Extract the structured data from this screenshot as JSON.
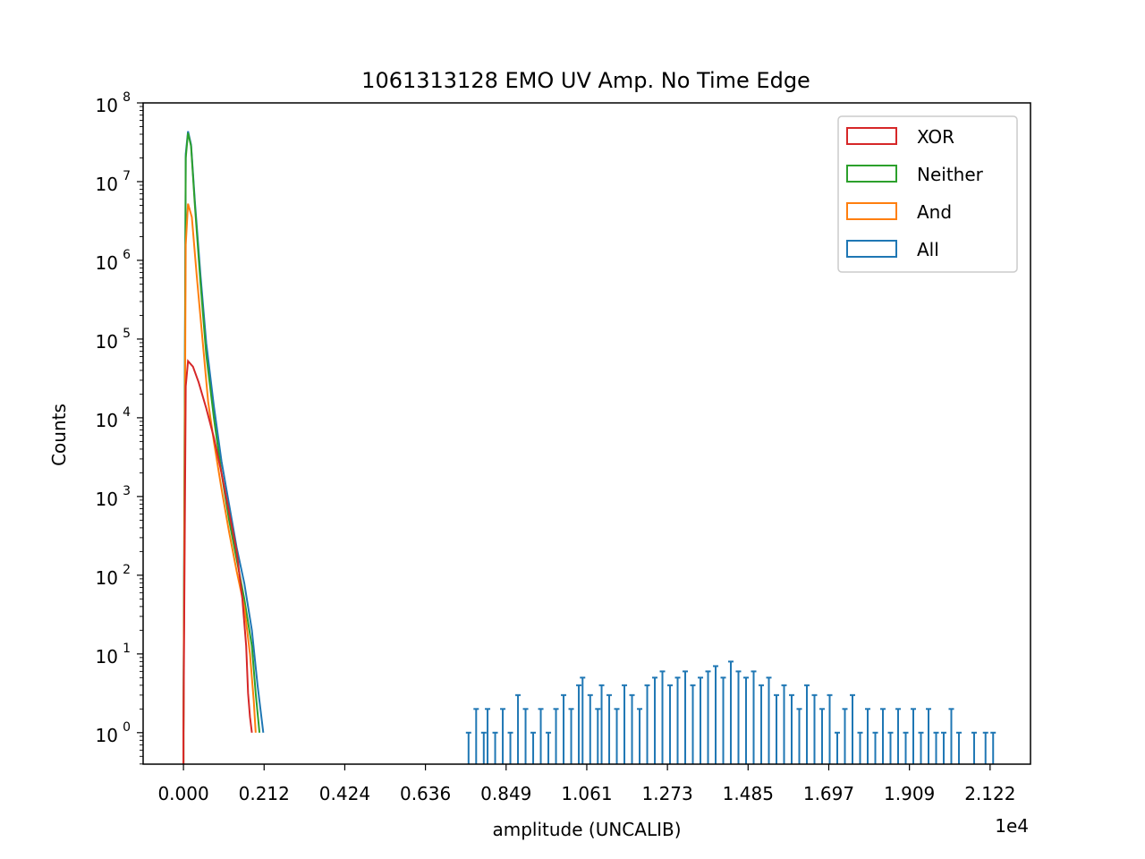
{
  "chart_data": {
    "type": "histogram",
    "title": "1061313128 EMO UV Amp. No Time Edge",
    "xlabel": "amplitude (UNCALIB)",
    "ylabel": "Counts",
    "x_offset_label": "1e4",
    "x_scale_factor": 10000,
    "xlim": [
      -0.1061,
      2.2283
    ],
    "ylim_log10": [
      -0.4,
      8.0
    ],
    "yscale": "log",
    "x_tick_values": [
      0.0,
      0.2122,
      0.4244,
      0.6366,
      0.8488,
      1.061,
      1.2732,
      1.4854,
      1.6976,
      1.9098,
      2.122
    ],
    "x_tick_labels": [
      "0.000",
      "0.212",
      "0.424",
      "0.636",
      "0.849",
      "1.061",
      "1.273",
      "1.485",
      "1.697",
      "1.909",
      "2.122"
    ],
    "y_ticks": [
      {
        "exp": 0,
        "base": "10",
        "power": "0"
      },
      {
        "exp": 1,
        "base": "10",
        "power": "1"
      },
      {
        "exp": 2,
        "base": "10",
        "power": "2"
      },
      {
        "exp": 3,
        "base": "10",
        "power": "3"
      },
      {
        "exp": 4,
        "base": "10",
        "power": "4"
      },
      {
        "exp": 5,
        "base": "10",
        "power": "5"
      },
      {
        "exp": 6,
        "base": "10",
        "power": "6"
      },
      {
        "exp": 7,
        "base": "10",
        "power": "7"
      },
      {
        "exp": 8,
        "base": "10",
        "power": "8"
      }
    ],
    "legend_position": "top-right",
    "grid": false,
    "series": [
      {
        "name": "XOR",
        "color": "#d62728",
        "points": [
          [
            0.0,
            0
          ],
          [
            0.006,
            4.4
          ],
          [
            0.012,
            4.72
          ],
          [
            0.025,
            4.65
          ],
          [
            0.04,
            4.45
          ],
          [
            0.06,
            4.12
          ],
          [
            0.08,
            3.75
          ],
          [
            0.1,
            3.3
          ],
          [
            0.12,
            2.8
          ],
          [
            0.14,
            2.3
          ],
          [
            0.155,
            1.7
          ],
          [
            0.165,
            1.1
          ],
          [
            0.17,
            0.5
          ],
          [
            0.175,
            0.2
          ],
          [
            0.18,
            0
          ]
        ]
      },
      {
        "name": "Neither",
        "color": "#2ca02c",
        "points": [
          [
            0.0,
            0
          ],
          [
            0.006,
            7.3
          ],
          [
            0.012,
            7.62
          ],
          [
            0.02,
            7.45
          ],
          [
            0.03,
            6.7
          ],
          [
            0.045,
            5.7
          ],
          [
            0.06,
            4.8
          ],
          [
            0.08,
            4.0
          ],
          [
            0.1,
            3.3
          ],
          [
            0.12,
            2.7
          ],
          [
            0.14,
            2.2
          ],
          [
            0.16,
            1.7
          ],
          [
            0.18,
            1.1
          ],
          [
            0.19,
            0.5
          ],
          [
            0.2,
            0
          ]
        ]
      },
      {
        "name": "And",
        "color": "#ff7f0e",
        "points": [
          [
            0.0,
            0
          ],
          [
            0.006,
            6.2
          ],
          [
            0.012,
            6.72
          ],
          [
            0.022,
            6.55
          ],
          [
            0.035,
            5.8
          ],
          [
            0.05,
            5.0
          ],
          [
            0.065,
            4.2
          ],
          [
            0.08,
            3.7
          ],
          [
            0.1,
            3.1
          ],
          [
            0.12,
            2.55
          ],
          [
            0.14,
            2.05
          ],
          [
            0.16,
            1.6
          ],
          [
            0.175,
            1.0
          ],
          [
            0.185,
            0.4
          ],
          [
            0.19,
            0
          ]
        ]
      },
      {
        "name": "All",
        "color": "#1f77b4",
        "points": [
          [
            0.0,
            0
          ],
          [
            0.006,
            7.35
          ],
          [
            0.012,
            7.64
          ],
          [
            0.02,
            7.47
          ],
          [
            0.03,
            6.75
          ],
          [
            0.045,
            5.8
          ],
          [
            0.06,
            4.95
          ],
          [
            0.08,
            4.15
          ],
          [
            0.1,
            3.45
          ],
          [
            0.12,
            2.9
          ],
          [
            0.14,
            2.35
          ],
          [
            0.16,
            1.9
          ],
          [
            0.18,
            1.3
          ],
          [
            0.195,
            0.6
          ],
          [
            0.21,
            0
          ]
        ],
        "tail_counts": [
          [
            0.75,
            1
          ],
          [
            0.77,
            2
          ],
          [
            0.79,
            1
          ],
          [
            0.8,
            2
          ],
          [
            0.82,
            1
          ],
          [
            0.84,
            2
          ],
          [
            0.86,
            1
          ],
          [
            0.88,
            3
          ],
          [
            0.9,
            2
          ],
          [
            0.92,
            1
          ],
          [
            0.94,
            2
          ],
          [
            0.96,
            1
          ],
          [
            0.98,
            2
          ],
          [
            1.0,
            3
          ],
          [
            1.02,
            2
          ],
          [
            1.04,
            4
          ],
          [
            1.05,
            5
          ],
          [
            1.07,
            3
          ],
          [
            1.09,
            2
          ],
          [
            1.1,
            4
          ],
          [
            1.12,
            3
          ],
          [
            1.14,
            2
          ],
          [
            1.16,
            4
          ],
          [
            1.18,
            3
          ],
          [
            1.2,
            2
          ],
          [
            1.22,
            4
          ],
          [
            1.24,
            5
          ],
          [
            1.26,
            6
          ],
          [
            1.28,
            4
          ],
          [
            1.3,
            5
          ],
          [
            1.32,
            6
          ],
          [
            1.34,
            4
          ],
          [
            1.36,
            5
          ],
          [
            1.38,
            6
          ],
          [
            1.4,
            7
          ],
          [
            1.42,
            5
          ],
          [
            1.44,
            8
          ],
          [
            1.46,
            6
          ],
          [
            1.48,
            5
          ],
          [
            1.5,
            6
          ],
          [
            1.52,
            4
          ],
          [
            1.54,
            5
          ],
          [
            1.56,
            3
          ],
          [
            1.58,
            4
          ],
          [
            1.6,
            3
          ],
          [
            1.62,
            2
          ],
          [
            1.64,
            4
          ],
          [
            1.66,
            3
          ],
          [
            1.68,
            2
          ],
          [
            1.7,
            3
          ],
          [
            1.72,
            1
          ],
          [
            1.74,
            2
          ],
          [
            1.76,
            3
          ],
          [
            1.78,
            1
          ],
          [
            1.8,
            2
          ],
          [
            1.82,
            1
          ],
          [
            1.84,
            2
          ],
          [
            1.86,
            1
          ],
          [
            1.88,
            2
          ],
          [
            1.9,
            1
          ],
          [
            1.92,
            2
          ],
          [
            1.94,
            1
          ],
          [
            1.96,
            2
          ],
          [
            1.98,
            1
          ],
          [
            2.0,
            1
          ],
          [
            2.02,
            2
          ],
          [
            2.04,
            1
          ],
          [
            2.08,
            1
          ],
          [
            2.11,
            1
          ],
          [
            2.13,
            1
          ]
        ]
      }
    ]
  }
}
